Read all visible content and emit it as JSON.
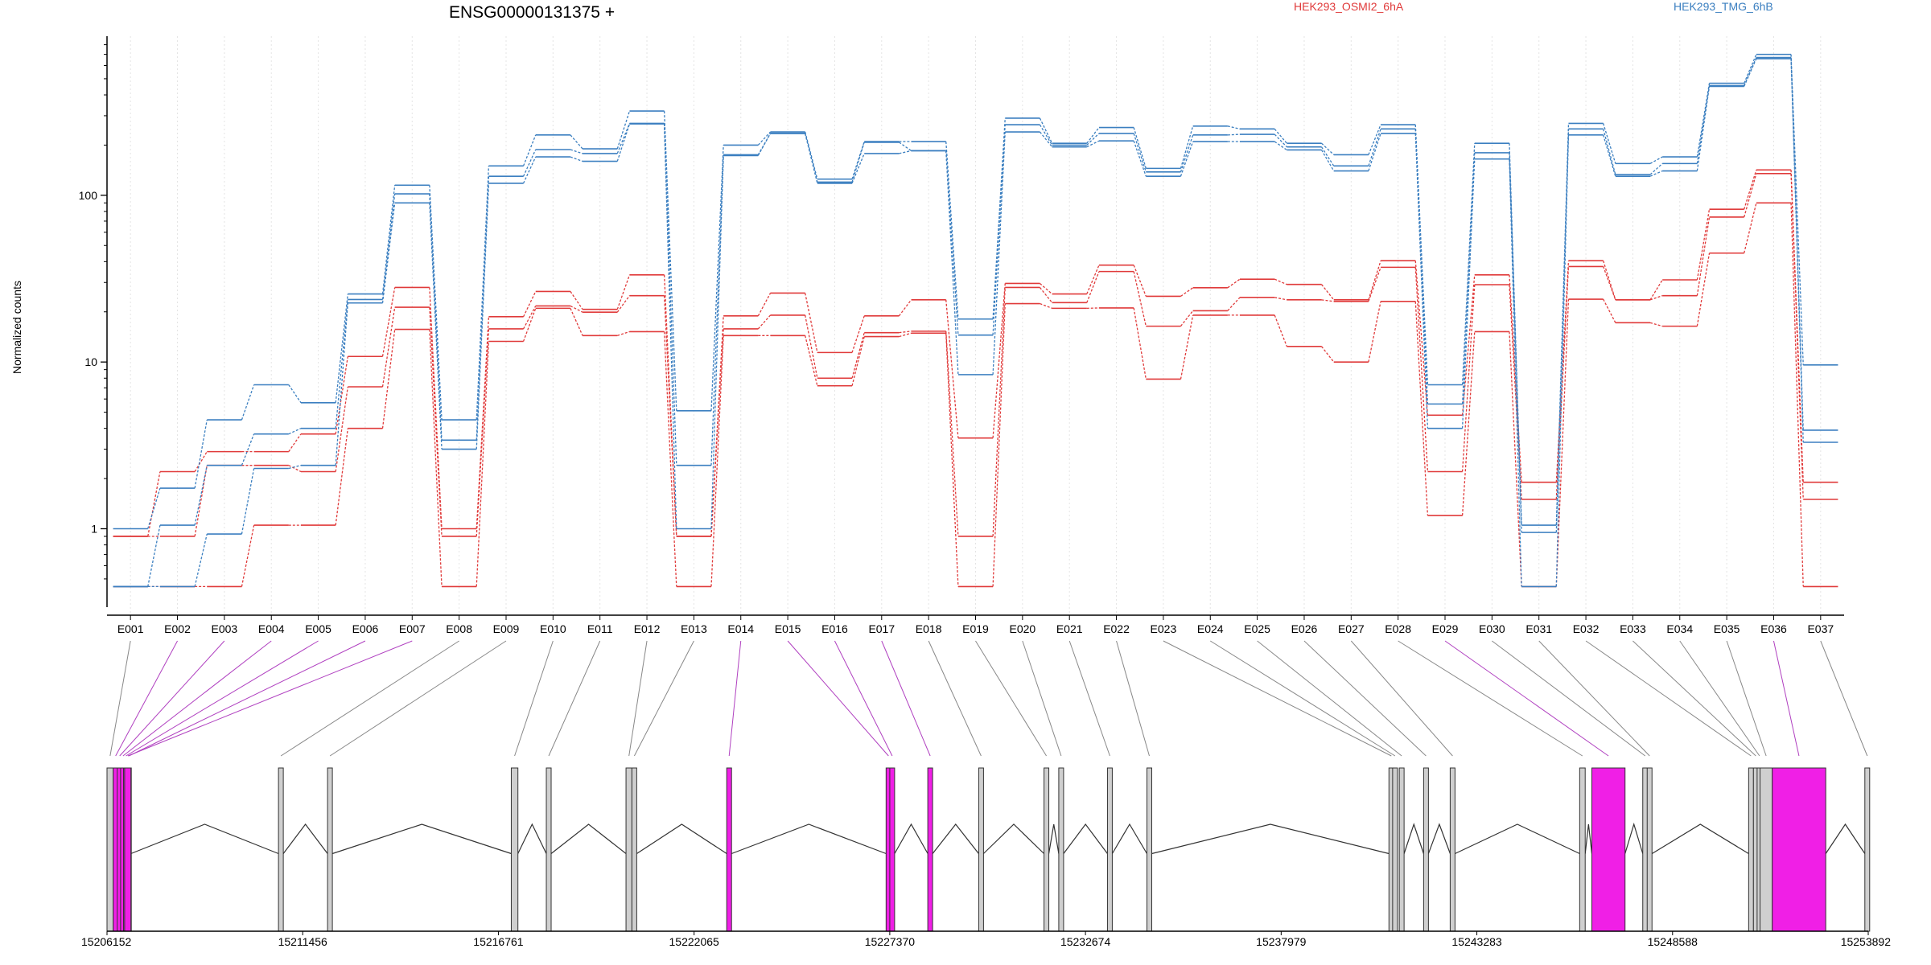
{
  "chart_data": {
    "type": "line",
    "title": "ENSG00000131375 +",
    "ylabel": "Normalized counts",
    "xlabel": "",
    "yscale": "log",
    "ylim": [
      0.4,
      900
    ],
    "yticks": [
      1,
      10,
      100
    ],
    "ytick_labels": [
      "1",
      "10",
      "100"
    ],
    "grid": "vertical dotted lines at each exon",
    "legend": [
      {
        "name": "HEK293_OSMI2_6hA",
        "color": "#e03a3a"
      },
      {
        "name": "HEK293_TMG_6hB",
        "color": "#3b7fc0"
      }
    ],
    "categories": [
      "E001",
      "E002",
      "E003",
      "E004",
      "E005",
      "E006",
      "E007",
      "E008",
      "E009",
      "E010",
      "E011",
      "E012",
      "E013",
      "E014",
      "E015",
      "E016",
      "E017",
      "E018",
      "E019",
      "E020",
      "E021",
      "E022",
      "E023",
      "E024",
      "E025",
      "E026",
      "E027",
      "E028",
      "E029",
      "E030",
      "E031",
      "E032",
      "E033",
      "E034",
      "E035",
      "E036",
      "E037"
    ],
    "series": [
      {
        "group": "HEK293_OSMI2_6hA",
        "values": [
          0.9,
          2.2,
          2.9,
          2.9,
          3.7,
          10.8,
          28,
          1.0,
          18.7,
          26.5,
          20.7,
          33.3,
          0.9,
          18.9,
          25.9,
          11.4,
          18.9,
          23.6,
          3.5,
          29.6,
          25.6,
          38.1,
          24.8,
          27.9,
          31.4,
          29.2,
          23.6,
          40.5,
          4.8,
          33.3,
          1.9,
          40.5,
          23.6,
          31.1,
          82.5,
          142,
          1.9
        ]
      },
      {
        "group": "HEK293_OSMI2_6hA",
        "values": [
          0.9,
          0.9,
          2.4,
          2.4,
          2.2,
          7.1,
          21.3,
          0.9,
          15.8,
          21.7,
          19.9,
          25.0,
          0.9,
          15.8,
          19.1,
          8.0,
          15.0,
          15.3,
          0.9,
          28.0,
          22.7,
          34.9,
          16.4,
          20.3,
          24.4,
          23.6,
          23.1,
          37.0,
          2.2,
          29.1,
          1.5,
          37.4,
          23.6,
          25.0,
          74.0,
          135,
          1.5
        ]
      },
      {
        "group": "HEK293_OSMI2_6hA",
        "values": [
          0.45,
          0.45,
          0.45,
          1.05,
          1.05,
          4.0,
          15.7,
          0.45,
          13.3,
          21.0,
          14.4,
          15.2,
          0.45,
          14.4,
          14.4,
          7.2,
          14.2,
          14.9,
          0.45,
          22.4,
          21.0,
          21.1,
          7.9,
          19.1,
          19.1,
          12.4,
          10.0,
          23.1,
          1.2,
          15.2,
          0.45,
          23.8,
          17.2,
          16.4,
          45.0,
          90.0,
          0.45
        ]
      },
      {
        "group": "HEK293_TMG_6hB",
        "values": [
          1.0,
          1.75,
          4.5,
          7.3,
          5.7,
          25.6,
          115,
          4.5,
          150,
          230,
          190,
          320,
          5.1,
          200,
          240,
          125,
          210,
          210,
          18.1,
          290,
          205,
          255,
          145,
          260,
          250,
          205,
          175,
          265,
          7.3,
          205,
          1.05,
          270,
          155,
          170,
          470,
          700,
          9.6
        ]
      },
      {
        "group": "HEK293_TMG_6hB",
        "values": [
          0.45,
          1.05,
          2.4,
          3.7,
          4.0,
          23.7,
          102,
          3.4,
          130,
          188,
          178,
          270,
          2.4,
          173,
          235,
          120,
          208,
          185,
          14.5,
          265,
          200,
          235,
          138,
          230,
          232,
          195,
          150,
          250,
          5.6,
          180,
          0.95,
          250,
          133,
          155,
          455,
          670,
          3.9
        ]
      },
      {
        "group": "HEK293_TMG_6hB",
        "values": [
          0.45,
          0.45,
          0.93,
          2.3,
          2.4,
          22.6,
          90,
          3.0,
          118,
          170,
          160,
          268,
          1.0,
          175,
          235,
          118,
          178,
          185,
          8.4,
          240,
          195,
          212,
          130,
          210,
          210,
          187,
          140,
          235,
          4.0,
          165,
          0.45,
          230,
          130,
          140,
          450,
          660,
          3.3
        ]
      }
    ]
  },
  "gene_model": {
    "coordinate_labels": [
      "15206152",
      "15211456",
      "15216761",
      "15222065",
      "15227370",
      "15232674",
      "15237979",
      "15243283",
      "15248588",
      "15253892"
    ],
    "colors": {
      "exon": "#cfcfcf",
      "highlighted_exon": "#f01fe6",
      "intron": "#333333",
      "connector_normal": "#888888",
      "connector_highlight": "#b040c0"
    },
    "exons": [
      {
        "id": "E001",
        "start": 15206152,
        "end": 15206320,
        "highlight": false
      },
      {
        "id": "E002",
        "start": 15206320,
        "end": 15206430,
        "highlight": true
      },
      {
        "id": "E003",
        "start": 15206430,
        "end": 15206520,
        "highlight": true
      },
      {
        "id": "E004",
        "start": 15206520,
        "end": 15206600,
        "highlight": true
      },
      {
        "id": "E005",
        "start": 15206600,
        "end": 15206680,
        "highlight": true
      },
      {
        "id": "E006",
        "start": 15206680,
        "end": 15206800,
        "highlight": true
      },
      {
        "id": "E007",
        "start": 15206800,
        "end": 15206630,
        "highlight": true
      },
      {
        "id": "E008",
        "start": 15210800,
        "end": 15210930,
        "highlight": false
      },
      {
        "id": "E009",
        "start": 15212130,
        "end": 15212230,
        "highlight": false
      },
      {
        "id": "E010",
        "start": 15217110,
        "end": 15217290,
        "highlight": false
      },
      {
        "id": "E011",
        "start": 15218060,
        "end": 15218150,
        "highlight": false
      },
      {
        "id": "E012",
        "start": 15220220,
        "end": 15220380,
        "highlight": false
      },
      {
        "id": "E013",
        "start": 15220380,
        "end": 15220500,
        "highlight": false
      },
      {
        "id": "E014",
        "start": 15222950,
        "end": 15223050,
        "highlight": true
      },
      {
        "id": "E015",
        "start": 15227270,
        "end": 15227370,
        "highlight": true
      },
      {
        "id": "E016",
        "start": 15227370,
        "end": 15227440,
        "highlight": true
      },
      {
        "id": "E017",
        "start": 15228400,
        "end": 15228500,
        "highlight": true
      },
      {
        "id": "E018",
        "start": 15229780,
        "end": 15229880,
        "highlight": false
      },
      {
        "id": "E019",
        "start": 15231550,
        "end": 15231640,
        "highlight": false
      },
      {
        "id": "E020",
        "start": 15231950,
        "end": 15232060,
        "highlight": false
      },
      {
        "id": "E021",
        "start": 15233270,
        "end": 15233380,
        "highlight": false
      },
      {
        "id": "E022",
        "start": 15234340,
        "end": 15234460,
        "highlight": false
      },
      {
        "id": "E023",
        "start": 15240900,
        "end": 15241000,
        "highlight": false
      },
      {
        "id": "E024",
        "start": 15241000,
        "end": 15241080,
        "highlight": false
      },
      {
        "id": "E025",
        "start": 15241180,
        "end": 15241290,
        "highlight": false
      },
      {
        "id": "E026",
        "start": 15241840,
        "end": 15241950,
        "highlight": false
      },
      {
        "id": "E027",
        "start": 15242560,
        "end": 15242660,
        "highlight": false
      },
      {
        "id": "E028",
        "start": 15246070,
        "end": 15246220,
        "highlight": false
      },
      {
        "id": "E029",
        "start": 15246400,
        "end": 15247300,
        "highlight": true
      },
      {
        "id": "E030",
        "start": 15247780,
        "end": 15247900,
        "highlight": false
      },
      {
        "id": "E031",
        "start": 15247900,
        "end": 15248030,
        "highlight": false
      },
      {
        "id": "E032",
        "start": 15250650,
        "end": 15250780,
        "highlight": false
      },
      {
        "id": "E033",
        "start": 15250780,
        "end": 15250880,
        "highlight": false
      },
      {
        "id": "E034",
        "start": 15250880,
        "end": 15250960,
        "highlight": false
      },
      {
        "id": "E035",
        "start": 15250960,
        "end": 15251290,
        "highlight": false
      },
      {
        "id": "E036",
        "start": 15251290,
        "end": 15252740,
        "highlight": true
      },
      {
        "id": "E037",
        "start": 15253800,
        "end": 15253892,
        "highlight": false
      }
    ]
  }
}
